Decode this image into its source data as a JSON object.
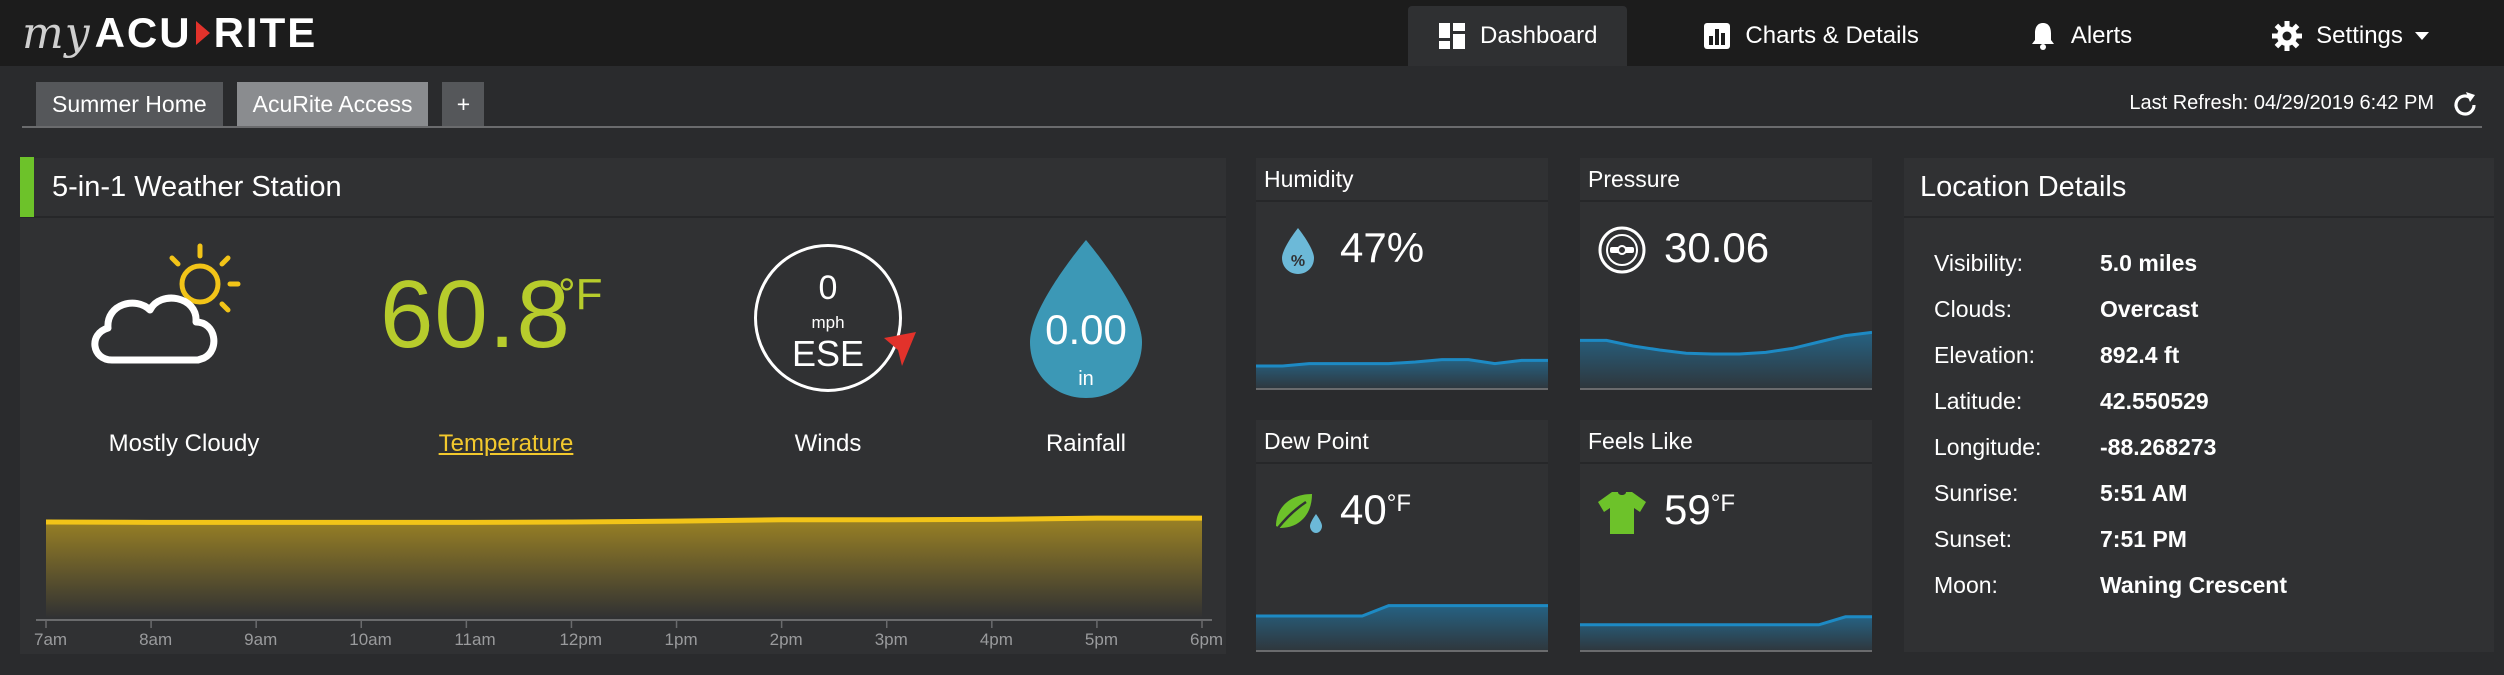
{
  "brand": {
    "my": "my",
    "acu": "ACU",
    "rite": "RITE",
    "accent": "#e2322b"
  },
  "nav": {
    "dashboard": "Dashboard",
    "charts": "Charts & Details",
    "alerts": "Alerts",
    "settings": "Settings"
  },
  "tabs": [
    "Summer Home",
    "AcuRite Access",
    "+"
  ],
  "active_tab": "AcuRite Access",
  "last_refresh": "Last Refresh: 04/29/2019 6:42 PM",
  "station": {
    "title": "5-in-1 Weather Station",
    "status_color": "#6dc22a",
    "condition": {
      "label": "Mostly Cloudy",
      "icon": "cloud-sun-icon"
    },
    "temperature": {
      "value": "60.8",
      "unit": "°F",
      "label": "Temperature",
      "color": "#b7cc2c"
    },
    "wind": {
      "speed": "0",
      "unit": "mph",
      "direction": "ESE",
      "label": "Winds"
    },
    "rain": {
      "value": "0.00",
      "unit": "in",
      "label": "Rainfall",
      "color": "#3c98b6"
    },
    "timeline": [
      "7am",
      "8am",
      "9am",
      "10am",
      "11am",
      "12pm",
      "1pm",
      "2pm",
      "3pm",
      "4pm",
      "5pm",
      "6pm"
    ],
    "temperature_trend": [
      58.9,
      58.8,
      58.8,
      58.8,
      58.8,
      58.9,
      59.1,
      59.4,
      59.4,
      59.5,
      59.8,
      59.8
    ]
  },
  "humidity": {
    "title": "Humidity",
    "value": "47%",
    "icon": "humidity-drop-icon",
    "trend": [
      30,
      30,
      33,
      33,
      33,
      33,
      35,
      38,
      38,
      33,
      37,
      37
    ]
  },
  "pressure": {
    "title": "Pressure",
    "value": "30.06",
    "icon": "pressure-gauge-icon",
    "trend": [
      62,
      62,
      55,
      50,
      46,
      45,
      45,
      47,
      52,
      60,
      68,
      72
    ]
  },
  "dew_point": {
    "title": "Dew Point",
    "value": "40",
    "unit": "°F",
    "icon": "dew-leaf-icon",
    "trend": [
      45,
      45,
      45,
      45,
      45,
      58,
      58,
      58,
      58,
      58,
      58,
      58
    ]
  },
  "feels_like": {
    "title": "Feels Like",
    "value": "59",
    "unit": "°F",
    "icon": "shirt-icon",
    "trend": [
      34,
      34,
      34,
      34,
      34,
      34,
      34,
      34,
      34,
      34,
      44,
      44
    ]
  },
  "location": {
    "title": "Location Details",
    "rows": [
      {
        "key": "Visibility:",
        "value": "5.0 miles"
      },
      {
        "key": "Clouds:",
        "value": "Overcast"
      },
      {
        "key": "Elevation:",
        "value": "892.4 ft"
      },
      {
        "key": "Latitude:",
        "value": "42.550529"
      },
      {
        "key": "Longitude:",
        "value": "-88.268273"
      },
      {
        "key": "Sunrise:",
        "value": "5:51 AM"
      },
      {
        "key": "Sunset:",
        "value": "7:51 PM"
      },
      {
        "key": "Moon:",
        "value": "Waning Crescent"
      }
    ]
  },
  "chart_colors": {
    "temp_line": "#f2c418",
    "mini_line": "#1d8ac4"
  }
}
